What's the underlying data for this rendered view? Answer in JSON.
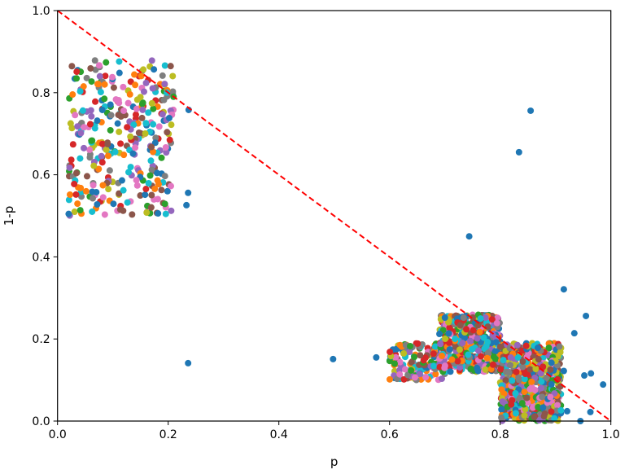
{
  "chart_data": {
    "type": "scatter",
    "title": "",
    "xlabel": "p",
    "ylabel": "1-p",
    "xlim": [
      0.0,
      1.0
    ],
    "ylim": [
      0.0,
      1.0
    ],
    "xticks": [
      "0.0",
      "0.2",
      "0.4",
      "0.6",
      "0.8",
      "1.0"
    ],
    "yticks": [
      "0.0",
      "0.2",
      "0.4",
      "0.6",
      "0.8",
      "1.0"
    ],
    "grid": false,
    "palette": [
      "#1f77b4",
      "#ff7f0e",
      "#2ca02c",
      "#d62728",
      "#9467bd",
      "#8c564b",
      "#e377c2",
      "#7f7f7f",
      "#bcbd22",
      "#17becf"
    ],
    "reference_line": {
      "from": [
        0,
        1
      ],
      "to": [
        1,
        0
      ],
      "color": "#ff0000",
      "style": "dashed"
    },
    "clusters": [
      {
        "p_range": [
          0.02,
          0.21
        ],
        "q_range": [
          0.5,
          0.88
        ],
        "count": 340
      },
      {
        "p_range": [
          0.6,
          0.7
        ],
        "q_range": [
          0.1,
          0.19
        ],
        "count": 160
      },
      {
        "p_range": [
          0.69,
          0.8
        ],
        "q_range": [
          0.12,
          0.26
        ],
        "count": 520
      },
      {
        "p_range": [
          0.8,
          0.91
        ],
        "q_range": [
          0.0,
          0.19
        ],
        "count": 620
      }
    ],
    "outliers": {
      "color": "#1f77b4",
      "points": [
        [
          0.855,
          0.756
        ],
        [
          0.834,
          0.655
        ],
        [
          0.744,
          0.45
        ],
        [
          0.915,
          0.321
        ],
        [
          0.955,
          0.256
        ],
        [
          0.934,
          0.214
        ],
        [
          0.915,
          0.122
        ],
        [
          0.952,
          0.111
        ],
        [
          0.964,
          0.116
        ],
        [
          0.986,
          0.089
        ],
        [
          0.921,
          0.024
        ],
        [
          0.963,
          0.022
        ],
        [
          0.945,
          0.0
        ],
        [
          0.236,
          0.141
        ],
        [
          0.498,
          0.151
        ],
        [
          0.576,
          0.155
        ],
        [
          0.236,
          0.556
        ],
        [
          0.233,
          0.526
        ],
        [
          0.237,
          0.758
        ]
      ]
    }
  }
}
